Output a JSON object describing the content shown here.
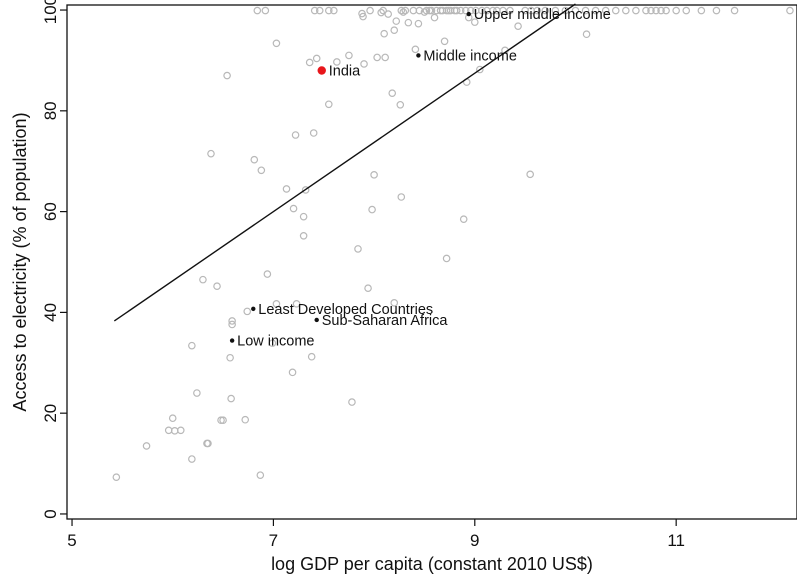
{
  "chart_data": {
    "type": "scatter",
    "xlabel": "log GDP  per capita (constant 2010 US$)",
    "ylabel": "Access to electricity (% of population)",
    "xlim": [
      4.95,
      12.2
    ],
    "ylim": [
      -1,
      101
    ],
    "x_ticks": [
      5,
      7,
      9,
      11
    ],
    "y_ticks": [
      0,
      20,
      40,
      60,
      80,
      100
    ],
    "grid": false,
    "colors": {
      "points": "#b8b8b8",
      "highlight": "#e8161b",
      "labeled": "#111111",
      "fit_line": "#111111"
    },
    "fit_line": {
      "x": [
        5.42,
        10.0
      ],
      "y": [
        38.3,
        101.2
      ]
    },
    "highlight": {
      "name": "India",
      "x": 7.48,
      "y": 88.0
    },
    "labeled_points": [
      {
        "name": "Upper middle income",
        "x": 8.94,
        "y": 99.2
      },
      {
        "name": "Middle income",
        "x": 8.44,
        "y": 91.0
      },
      {
        "name": "Least Developed Countries",
        "x": 6.8,
        "y": 40.7
      },
      {
        "name": "Sub-Saharan Africa",
        "x": 7.43,
        "y": 38.5
      },
      {
        "name": "Low income",
        "x": 6.59,
        "y": 34.4
      }
    ],
    "points": [
      [
        5.44,
        7.3
      ],
      [
        5.74,
        13.5
      ],
      [
        5.96,
        16.6
      ],
      [
        6.0,
        19.0
      ],
      [
        6.02,
        16.5
      ],
      [
        6.08,
        16.6
      ],
      [
        6.19,
        10.9
      ],
      [
        6.19,
        33.4
      ],
      [
        6.24,
        24.0
      ],
      [
        6.3,
        46.5
      ],
      [
        6.34,
        14.0
      ],
      [
        6.35,
        14.0
      ],
      [
        6.38,
        71.5
      ],
      [
        6.44,
        45.2
      ],
      [
        6.48,
        18.6
      ],
      [
        6.5,
        18.6
      ],
      [
        6.54,
        87.0
      ],
      [
        6.57,
        31.0
      ],
      [
        6.58,
        22.9
      ],
      [
        6.59,
        37.6
      ],
      [
        6.59,
        38.3
      ],
      [
        6.72,
        18.7
      ],
      [
        6.74,
        40.2
      ],
      [
        6.81,
        70.3
      ],
      [
        6.84,
        99.9
      ],
      [
        6.87,
        7.7
      ],
      [
        6.88,
        68.2
      ],
      [
        6.92,
        99.9
      ],
      [
        6.94,
        47.6
      ],
      [
        6.99,
        33.9
      ],
      [
        7.03,
        93.4
      ],
      [
        7.03,
        41.7
      ],
      [
        7.13,
        64.5
      ],
      [
        7.19,
        28.1
      ],
      [
        7.2,
        60.6
      ],
      [
        7.22,
        75.2
      ],
      [
        7.23,
        41.7
      ],
      [
        7.3,
        59.0
      ],
      [
        7.3,
        55.2
      ],
      [
        7.32,
        64.3
      ],
      [
        7.36,
        89.6
      ],
      [
        7.38,
        31.2
      ],
      [
        7.4,
        75.6
      ],
      [
        7.41,
        99.9
      ],
      [
        7.43,
        90.4
      ],
      [
        7.46,
        99.9
      ],
      [
        7.55,
        81.3
      ],
      [
        7.55,
        99.9
      ],
      [
        7.6,
        99.9
      ],
      [
        7.63,
        89.7
      ],
      [
        7.75,
        91.0
      ],
      [
        7.78,
        22.2
      ],
      [
        7.84,
        52.6
      ],
      [
        7.88,
        99.3
      ],
      [
        7.89,
        98.7
      ],
      [
        7.9,
        89.3
      ],
      [
        7.94,
        44.8
      ],
      [
        7.96,
        99.9
      ],
      [
        7.98,
        60.4
      ],
      [
        8.0,
        67.3
      ],
      [
        8.03,
        90.6
      ],
      [
        8.07,
        99.5
      ],
      [
        8.09,
        99.9
      ],
      [
        8.1,
        95.3
      ],
      [
        8.11,
        90.6
      ],
      [
        8.14,
        99.2
      ],
      [
        8.18,
        83.5
      ],
      [
        8.2,
        41.9
      ],
      [
        8.2,
        96.0
      ],
      [
        8.22,
        97.8
      ],
      [
        8.26,
        81.2
      ],
      [
        8.27,
        99.9
      ],
      [
        8.27,
        62.9
      ],
      [
        8.29,
        99.6
      ],
      [
        8.31,
        99.9
      ],
      [
        8.34,
        97.5
      ],
      [
        8.39,
        99.9
      ],
      [
        8.41,
        92.2
      ],
      [
        8.44,
        97.3
      ],
      [
        8.45,
        99.9
      ],
      [
        8.5,
        99.6
      ],
      [
        8.52,
        99.9
      ],
      [
        8.55,
        99.9
      ],
      [
        8.57,
        99.9
      ],
      [
        8.6,
        98.5
      ],
      [
        8.62,
        99.9
      ],
      [
        8.66,
        99.9
      ],
      [
        8.68,
        99.9
      ],
      [
        8.7,
        93.8
      ],
      [
        8.72,
        99.9
      ],
      [
        8.72,
        50.7
      ],
      [
        8.74,
        99.9
      ],
      [
        8.76,
        99.9
      ],
      [
        8.8,
        99.9
      ],
      [
        8.82,
        99.9
      ],
      [
        8.86,
        99.9
      ],
      [
        8.89,
        58.5
      ],
      [
        8.91,
        99.9
      ],
      [
        8.92,
        85.7
      ],
      [
        8.94,
        98.5
      ],
      [
        8.96,
        99.9
      ],
      [
        9.0,
        97.6
      ],
      [
        9.01,
        99.9
      ],
      [
        9.05,
        88.2
      ],
      [
        9.07,
        99.9
      ],
      [
        9.12,
        99.9
      ],
      [
        9.18,
        99.9
      ],
      [
        9.22,
        99.9
      ],
      [
        9.28,
        99.9
      ],
      [
        9.3,
        92.0
      ],
      [
        9.35,
        99.9
      ],
      [
        9.43,
        96.8
      ],
      [
        9.5,
        99.9
      ],
      [
        9.55,
        67.4
      ],
      [
        9.56,
        99.9
      ],
      [
        9.62,
        99.9
      ],
      [
        9.7,
        99.9
      ],
      [
        9.8,
        99.9
      ],
      [
        9.9,
        99.9
      ],
      [
        10.0,
        99.9
      ],
      [
        10.1,
        99.9
      ],
      [
        10.11,
        95.2
      ],
      [
        10.2,
        99.9
      ],
      [
        10.3,
        99.9
      ],
      [
        10.4,
        99.9
      ],
      [
        10.5,
        99.9
      ],
      [
        10.6,
        99.9
      ],
      [
        10.7,
        99.9
      ],
      [
        10.75,
        99.9
      ],
      [
        10.8,
        99.9
      ],
      [
        10.85,
        99.9
      ],
      [
        10.9,
        99.9
      ],
      [
        11.0,
        99.9
      ],
      [
        11.1,
        99.9
      ],
      [
        11.25,
        99.9
      ],
      [
        11.4,
        99.9
      ],
      [
        11.58,
        99.9
      ],
      [
        12.13,
        99.9
      ]
    ]
  }
}
